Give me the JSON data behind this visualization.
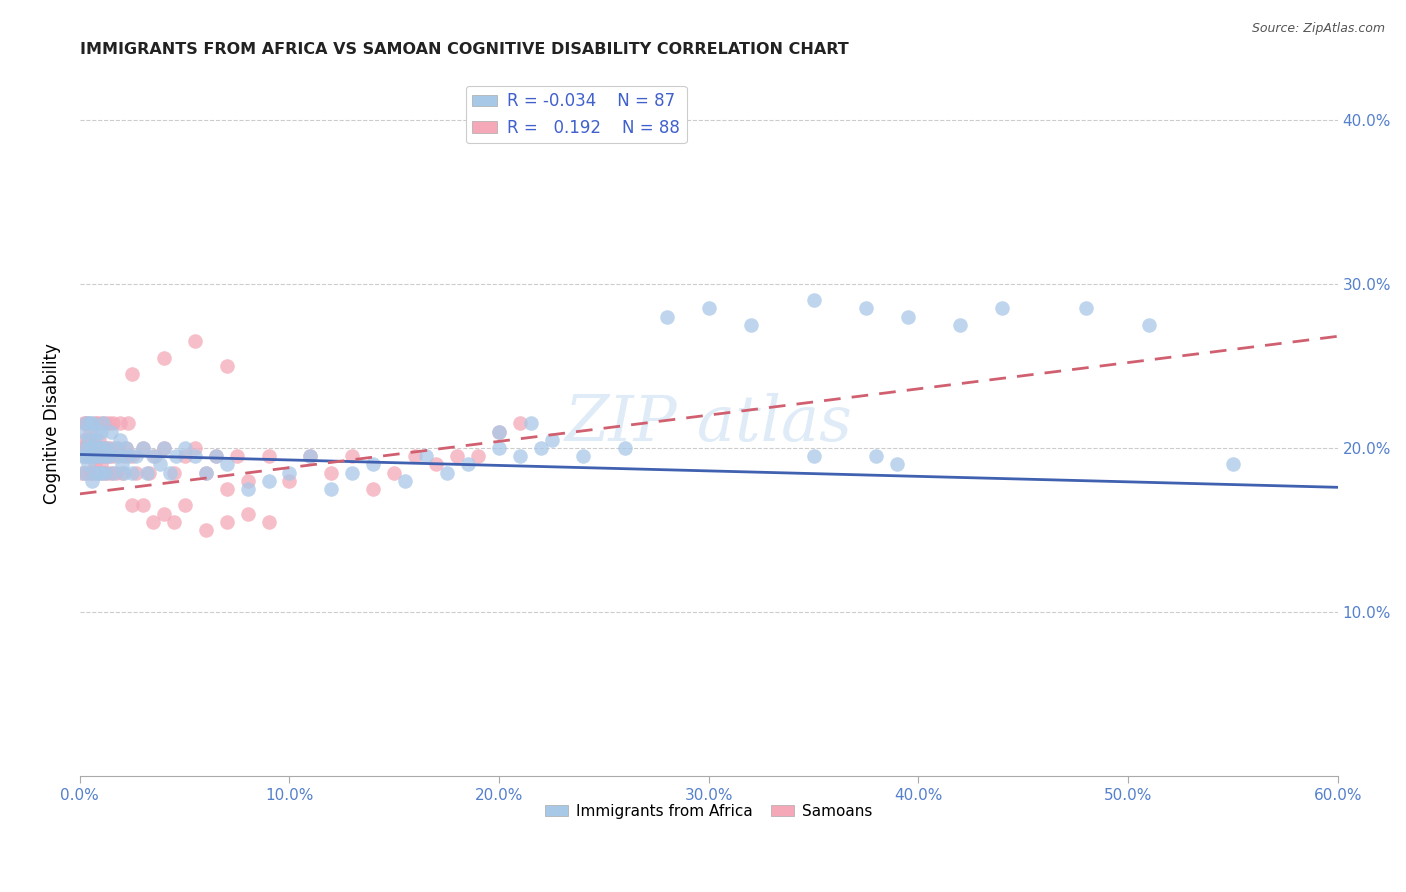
{
  "title": "IMMIGRANTS FROM AFRICA VS SAMOAN COGNITIVE DISABILITY CORRELATION CHART",
  "source": "Source: ZipAtlas.com",
  "ylabel": "Cognitive Disability",
  "xlim": [
    0.0,
    0.6
  ],
  "ylim": [
    0.0,
    0.43
  ],
  "xtick_vals": [
    0.0,
    0.1,
    0.2,
    0.3,
    0.4,
    0.5,
    0.6
  ],
  "ytick_vals": [
    0.1,
    0.2,
    0.3,
    0.4
  ],
  "legend_r_values": [
    "-0.034",
    "0.192"
  ],
  "legend_n_values": [
    "87",
    "88"
  ],
  "color_blue": "#a8c8e8",
  "color_pink": "#f4a8b8",
  "color_blue_line": "#4060b0",
  "color_pink_line": "#d06070",
  "blue_x": [
    0.001,
    0.002,
    0.002,
    0.003,
    0.003,
    0.003,
    0.004,
    0.004,
    0.005,
    0.005,
    0.005,
    0.006,
    0.006,
    0.006,
    0.007,
    0.007,
    0.007,
    0.008,
    0.008,
    0.008,
    0.009,
    0.009,
    0.01,
    0.01,
    0.01,
    0.011,
    0.011,
    0.012,
    0.012,
    0.013,
    0.014,
    0.015,
    0.016,
    0.017,
    0.018,
    0.019,
    0.02,
    0.021,
    0.022,
    0.023,
    0.025,
    0.027,
    0.03,
    0.032,
    0.035,
    0.038,
    0.04,
    0.043,
    0.046,
    0.05,
    0.055,
    0.06,
    0.065,
    0.07,
    0.08,
    0.09,
    0.1,
    0.11,
    0.12,
    0.13,
    0.14,
    0.155,
    0.165,
    0.175,
    0.185,
    0.2,
    0.215,
    0.225,
    0.24,
    0.26,
    0.28,
    0.3,
    0.32,
    0.35,
    0.375,
    0.395,
    0.42,
    0.44,
    0.48,
    0.51,
    0.55,
    0.2,
    0.21,
    0.22,
    0.35,
    0.38,
    0.39
  ],
  "blue_y": [
    0.195,
    0.185,
    0.21,
    0.195,
    0.2,
    0.215,
    0.19,
    0.205,
    0.2,
    0.215,
    0.195,
    0.18,
    0.2,
    0.215,
    0.195,
    0.205,
    0.185,
    0.2,
    0.21,
    0.195,
    0.185,
    0.2,
    0.195,
    0.21,
    0.185,
    0.2,
    0.215,
    0.195,
    0.185,
    0.2,
    0.195,
    0.21,
    0.185,
    0.2,
    0.195,
    0.205,
    0.19,
    0.185,
    0.2,
    0.195,
    0.185,
    0.195,
    0.2,
    0.185,
    0.195,
    0.19,
    0.2,
    0.185,
    0.195,
    0.2,
    0.195,
    0.185,
    0.195,
    0.19,
    0.175,
    0.18,
    0.185,
    0.195,
    0.175,
    0.185,
    0.19,
    0.18,
    0.195,
    0.185,
    0.19,
    0.21,
    0.215,
    0.205,
    0.195,
    0.2,
    0.28,
    0.285,
    0.275,
    0.29,
    0.285,
    0.28,
    0.275,
    0.285,
    0.285,
    0.275,
    0.19,
    0.2,
    0.195,
    0.2,
    0.195,
    0.195,
    0.19
  ],
  "pink_x": [
    0.001,
    0.001,
    0.002,
    0.002,
    0.002,
    0.003,
    0.003,
    0.003,
    0.004,
    0.004,
    0.004,
    0.005,
    0.005,
    0.005,
    0.006,
    0.006,
    0.006,
    0.007,
    0.007,
    0.007,
    0.008,
    0.008,
    0.008,
    0.009,
    0.009,
    0.01,
    0.01,
    0.01,
    0.011,
    0.011,
    0.012,
    0.012,
    0.013,
    0.013,
    0.014,
    0.014,
    0.015,
    0.015,
    0.016,
    0.016,
    0.017,
    0.018,
    0.019,
    0.02,
    0.021,
    0.022,
    0.023,
    0.025,
    0.027,
    0.03,
    0.033,
    0.036,
    0.04,
    0.045,
    0.05,
    0.055,
    0.06,
    0.065,
    0.07,
    0.075,
    0.08,
    0.09,
    0.1,
    0.11,
    0.12,
    0.13,
    0.14,
    0.15,
    0.16,
    0.17,
    0.18,
    0.19,
    0.2,
    0.21,
    0.025,
    0.03,
    0.035,
    0.04,
    0.045,
    0.05,
    0.06,
    0.07,
    0.08,
    0.09,
    0.025,
    0.04,
    0.055,
    0.07
  ],
  "pink_y": [
    0.2,
    0.185,
    0.215,
    0.195,
    0.205,
    0.2,
    0.215,
    0.185,
    0.205,
    0.195,
    0.215,
    0.2,
    0.185,
    0.21,
    0.195,
    0.205,
    0.185,
    0.2,
    0.215,
    0.19,
    0.185,
    0.2,
    0.215,
    0.195,
    0.205,
    0.19,
    0.2,
    0.215,
    0.185,
    0.2,
    0.215,
    0.195,
    0.2,
    0.185,
    0.195,
    0.215,
    0.185,
    0.2,
    0.215,
    0.195,
    0.185,
    0.2,
    0.215,
    0.185,
    0.195,
    0.2,
    0.215,
    0.195,
    0.185,
    0.2,
    0.185,
    0.195,
    0.2,
    0.185,
    0.195,
    0.2,
    0.185,
    0.195,
    0.175,
    0.195,
    0.18,
    0.195,
    0.18,
    0.195,
    0.185,
    0.195,
    0.175,
    0.185,
    0.195,
    0.19,
    0.195,
    0.195,
    0.21,
    0.215,
    0.165,
    0.165,
    0.155,
    0.16,
    0.155,
    0.165,
    0.15,
    0.155,
    0.16,
    0.155,
    0.245,
    0.255,
    0.265,
    0.25
  ]
}
